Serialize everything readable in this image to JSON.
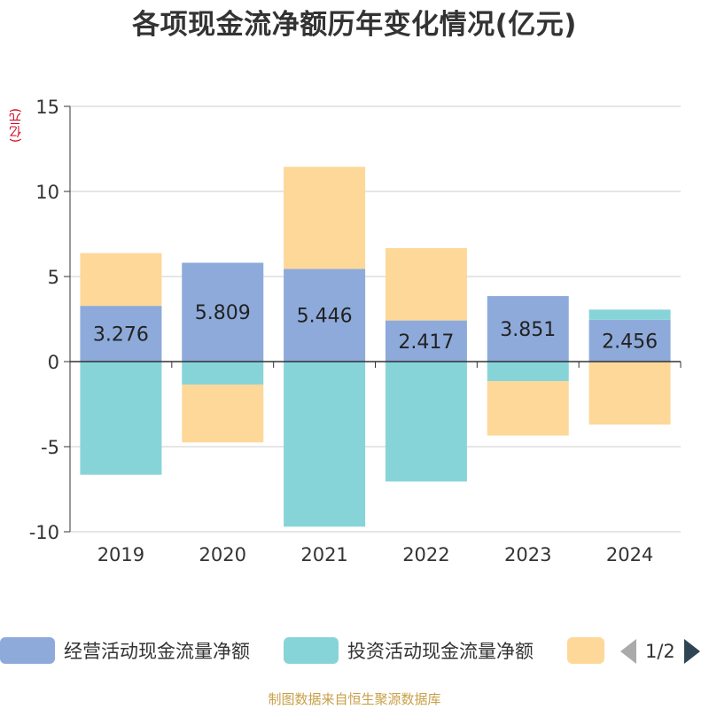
{
  "chart_data": {
    "type": "bar",
    "stacked": true,
    "title": "各项现金流净额历年变化情况(亿元)",
    "ylabel": "(亿元)",
    "categories": [
      "2019",
      "2020",
      "2021",
      "2022",
      "2023",
      "2024"
    ],
    "series": [
      {
        "name": "经营活动现金流量净额",
        "color": "#8eaadb",
        "values": [
          3.276,
          5.809,
          5.446,
          2.417,
          3.851,
          2.456
        ]
      },
      {
        "name": "投资活动现金流量净额",
        "color": "#87d4d8",
        "values": [
          -6.65,
          -1.35,
          -9.7,
          -7.05,
          -1.15,
          0.6
        ]
      },
      {
        "name": "",
        "color": "#fdd899",
        "values": [
          3.1,
          -3.4,
          6.0,
          4.25,
          -3.2,
          -3.7
        ]
      }
    ],
    "data_labels": [
      "3.276",
      "5.809",
      "5.446",
      "2.417",
      "3.851",
      "2.456"
    ],
    "ylim": [
      -10,
      15
    ],
    "yticks": [
      -10,
      -5,
      0,
      5,
      10,
      15
    ],
    "grid": true,
    "legend_position": "bottom"
  },
  "legend": {
    "items": [
      {
        "label": "经营活动现金流量净额",
        "color": "#8eaadb"
      },
      {
        "label": "投资活动现金流量净额",
        "color": "#87d4d8"
      },
      {
        "label": "",
        "color": "#fdd899"
      }
    ],
    "pager_text": "1/2"
  },
  "source_note": "制图数据来自恒生聚源数据库"
}
